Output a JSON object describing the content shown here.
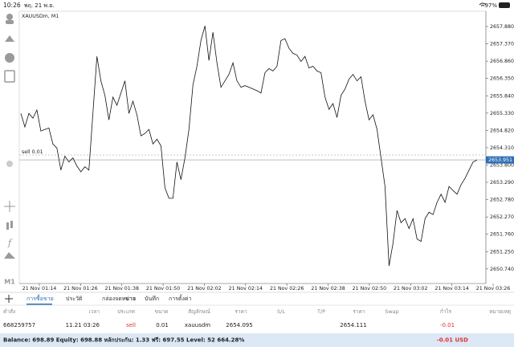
{
  "status_bar": {
    "time": "10:26",
    "date": "พฤ. 21 พ.ย.",
    "battery": "97%"
  },
  "sidebar": {
    "timeframe": "M1"
  },
  "chart_data": {
    "type": "line",
    "title": "XAUUSDm, M1",
    "color": "#111111",
    "values": [
      2655.32,
      2654.92,
      2655.32,
      2655.18,
      2655.42,
      2654.8,
      2654.85,
      2654.89,
      2654.42,
      2654.3,
      2653.65,
      2654.06,
      2653.89,
      2654.01,
      2653.77,
      2653.6,
      2653.75,
      2653.65,
      2655.32,
      2657.0,
      2656.28,
      2655.85,
      2655.13,
      2655.8,
      2655.56,
      2655.92,
      2656.28,
      2655.32,
      2655.68,
      2655.28,
      2654.66,
      2654.73,
      2654.85,
      2654.42,
      2654.56,
      2654.37,
      2653.13,
      2652.82,
      2652.82,
      2653.89,
      2653.37,
      2654.01,
      2654.85,
      2656.16,
      2656.71,
      2657.47,
      2657.9,
      2656.88,
      2657.71,
      2656.81,
      2656.09,
      2656.28,
      2656.47,
      2656.81,
      2656.28,
      2656.09,
      2656.14,
      2656.09,
      2656.04,
      2655.99,
      2655.92,
      2656.52,
      2656.64,
      2656.57,
      2656.71,
      2657.47,
      2657.52,
      2657.24,
      2657.09,
      2657.04,
      2656.85,
      2657.0,
      2656.66,
      2656.71,
      2656.57,
      2656.52,
      2655.8,
      2655.44,
      2655.61,
      2655.2,
      2655.85,
      2656.04,
      2656.33,
      2656.47,
      2656.28,
      2656.4,
      2655.68,
      2655.13,
      2655.28,
      2654.85,
      2654.01,
      2653.17,
      2650.83,
      2651.5,
      2652.46,
      2652.1,
      2652.22,
      2651.93,
      2652.22,
      2651.62,
      2651.55,
      2652.22,
      2652.41,
      2652.34,
      2652.7,
      2652.94,
      2652.7,
      2653.17,
      2653.05,
      2652.94,
      2653.22,
      2653.41,
      2653.65,
      2653.89,
      2653.95
    ],
    "ylim": [
      2650.31,
      2658.33
    ],
    "yticks": [
      {
        "value": 2650.74,
        "label": "2650.740"
      },
      {
        "value": 2651.25,
        "label": "2651.250"
      },
      {
        "value": 2651.76,
        "label": "2651.760"
      },
      {
        "value": 2652.27,
        "label": "2652.270"
      },
      {
        "value": 2652.78,
        "label": "2652.780"
      },
      {
        "value": 2653.29,
        "label": "2653.290"
      },
      {
        "value": 2653.8,
        "label": "2653.800"
      },
      {
        "value": 2654.31,
        "label": "2654.310"
      },
      {
        "value": 2654.82,
        "label": "2654.820"
      },
      {
        "value": 2655.33,
        "label": "2655.330"
      },
      {
        "value": 2655.84,
        "label": "2655.840"
      },
      {
        "value": 2656.35,
        "label": "2656.350"
      },
      {
        "value": 2656.86,
        "label": "2656.860"
      },
      {
        "value": 2657.37,
        "label": "2657.370"
      },
      {
        "value": 2657.88,
        "label": "2657.880"
      }
    ],
    "x_labels": [
      "21 Nov 01:14",
      "21 Nov 01:26",
      "21 Nov 01:38",
      "21 Nov 01:50",
      "21 Nov 02:02",
      "21 Nov 02:14",
      "21 Nov 02:26",
      "21 Nov 02:38",
      "21 Nov 02:50",
      "21 Nov 03:02",
      "21 Nov 03:14",
      "21 Nov 03:26"
    ],
    "current_price": 2653.951,
    "order_line": {
      "label": "sell 0.01",
      "value": 2654.095
    }
  },
  "tabs": [
    "การซื้อขาย",
    "ประวัติ",
    "กล่องจดหมาย",
    "ข่าว",
    "บันทึก",
    "การตั้งค่า"
  ],
  "table": {
    "headers": [
      "คำสั่ง",
      "เวลา",
      "ประเภท",
      "ขนาด",
      "สัญลักษณ์",
      "ราคา",
      "S/L",
      "T/P",
      "ราคา",
      "Swap",
      "กำไร",
      "หมายเหตุ"
    ],
    "rows": [
      [
        "668259757",
        "11.21 03:26",
        "sell",
        "0.01",
        "xauusdm",
        "2654.095",
        null,
        null,
        "2654.111",
        null,
        "-0.01",
        null
      ]
    ]
  },
  "balance_bar": {
    "summary": "Balance: 698.89 Equity: 698.88 หลักประกัน: 1.33 ฟรี: 697.55 Level: 52 664.28%",
    "profit": "-0.01 USD"
  }
}
